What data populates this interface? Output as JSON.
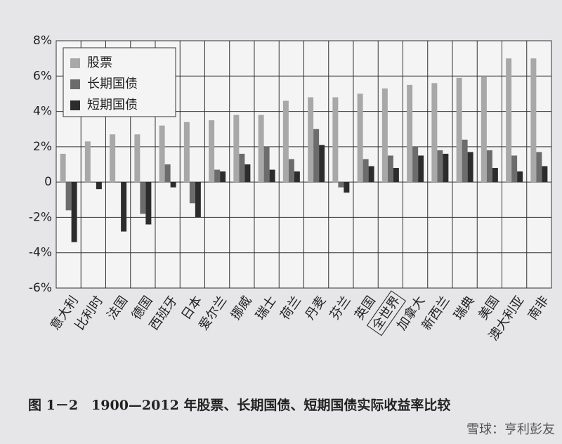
{
  "chart_data": {
    "type": "bar",
    "categories": [
      "意大利",
      "比利时",
      "法国",
      "德国",
      "西班牙",
      "日本",
      "爱尔兰",
      "挪威",
      "瑞士",
      "荷兰",
      "丹麦",
      "芬兰",
      "英国",
      "全世界",
      "加拿大",
      "新西兰",
      "瑞典",
      "美国",
      "澳大利亚",
      "南非"
    ],
    "series": [
      {
        "name": "股票",
        "color": "#a8a8a8",
        "values": [
          1.6,
          2.3,
          2.7,
          2.7,
          3.2,
          3.4,
          3.5,
          3.8,
          3.8,
          4.6,
          4.8,
          4.8,
          5.0,
          5.3,
          5.5,
          5.6,
          5.9,
          6.0,
          7.0,
          7.0
        ]
      },
      {
        "name": "长期国债",
        "color": "#6c6c6c",
        "values": [
          -1.6,
          0.0,
          0.0,
          -1.8,
          1.0,
          -1.2,
          0.7,
          1.6,
          2.0,
          1.3,
          3.0,
          -0.3,
          1.3,
          1.5,
          2.0,
          1.8,
          2.4,
          1.8,
          1.5,
          1.7
        ]
      },
      {
        "name": "短期国债",
        "color": "#2c2c2c",
        "values": [
          -3.4,
          -0.4,
          -2.8,
          -2.4,
          -0.3,
          -2.0,
          0.6,
          1.0,
          0.7,
          0.6,
          2.1,
          -0.6,
          0.9,
          0.8,
          1.5,
          1.6,
          1.7,
          0.8,
          0.6,
          0.9
        ]
      }
    ],
    "ylim": [
      -6,
      8
    ],
    "yticks": [
      {
        "value": -6,
        "label": "-6%"
      },
      {
        "value": -4,
        "label": "-4%"
      },
      {
        "value": -2,
        "label": "-2%"
      },
      0,
      {
        "value": 2,
        "label": "2%"
      },
      {
        "value": 4,
        "label": "4%"
      },
      {
        "value": 6,
        "label": "6%"
      },
      {
        "value": 8,
        "label": "8%"
      }
    ],
    "grid": true,
    "highlight_category": "全世界",
    "legend_position": "upper left",
    "caption": "图 1－2　1900—2012 年股票、长期国债、短期国债实际收益率比较",
    "watermark": "雪球：亨利彭友"
  }
}
